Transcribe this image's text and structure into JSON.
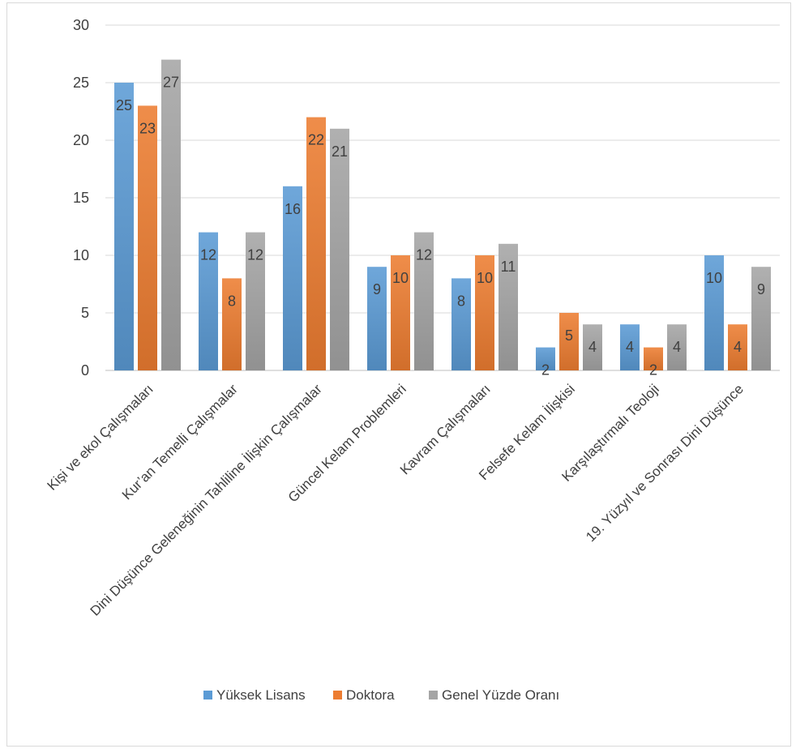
{
  "chart_data": {
    "type": "bar",
    "categories": [
      "Kişi ve ekol Çalışmaları",
      "Kur’an Temelli Çalışmalar",
      "Dini Düşünce Geleneğinin Tahliline İlişkin Çalışmalar",
      "Güncel Kelam Problemleri",
      "Kavram Çalışmaları",
      "Felsefe Kelam İlişkisi",
      "Karşılaştırmalı Teoloji",
      "19. Yüzyıl ve Sonrası Dini Düşünce"
    ],
    "series": [
      {
        "name": "Yüksek Lisans",
        "values": [
          25,
          12,
          16,
          9,
          8,
          2,
          4,
          10
        ],
        "color": "#5b9bd5"
      },
      {
        "name": "Doktora",
        "values": [
          23,
          8,
          22,
          10,
          10,
          5,
          2,
          4
        ],
        "color": "#ed7d31"
      },
      {
        "name": "Genel Yüzde Oranı",
        "values": [
          27,
          12,
          21,
          12,
          11,
          4,
          4,
          9
        ],
        "color": "#a5a5a5"
      }
    ],
    "ylim": [
      0,
      30
    ],
    "yticks": [
      "0",
      "5",
      "10",
      "15",
      "20",
      "25",
      "30"
    ],
    "grid": true,
    "legend_position": "bottom",
    "data_labels": true
  }
}
